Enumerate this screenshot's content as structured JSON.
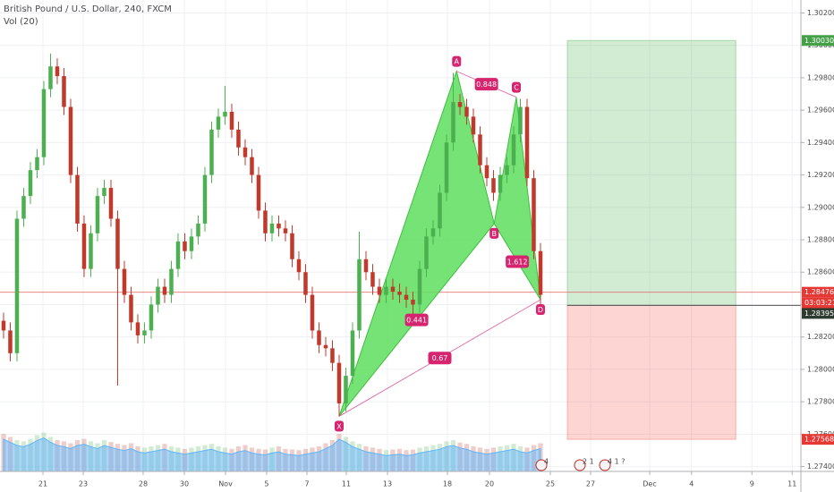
{
  "chart_data": {
    "type": "candlestick",
    "title": "British Pound / U.S. Dollar, 240, FXCM",
    "subtitle": "Vol (20)",
    "xlim": [
      -0.53,
      118.8
    ],
    "ylim": [
      1.2737,
      1.3028
    ],
    "yticks": [
      {
        "value": 1.274,
        "label": "1.27400"
      },
      {
        "value": 1.276,
        "label": "1.27600"
      },
      {
        "value": 1.278,
        "label": "1.27800"
      },
      {
        "value": 1.28,
        "label": "1.28000"
      },
      {
        "value": 1.282,
        "label": "1.28200"
      },
      {
        "value": 1.284,
        "label": "1.28400"
      },
      {
        "value": 1.286,
        "label": "1.28600"
      },
      {
        "value": 1.288,
        "label": "1.28800"
      },
      {
        "value": 1.29,
        "label": "1.29000"
      },
      {
        "value": 1.292,
        "label": "1.29200"
      },
      {
        "value": 1.294,
        "label": "1.29400"
      },
      {
        "value": 1.296,
        "label": "1.29600"
      },
      {
        "value": 1.298,
        "label": "1.29800"
      },
      {
        "value": 1.3,
        "label": "1.30000"
      },
      {
        "value": 1.302,
        "label": "1.30200"
      }
    ],
    "xticks": [
      {
        "value": 5.87,
        "label": "21"
      },
      {
        "value": 11.87,
        "label": "23"
      },
      {
        "value": 20.8,
        "label": "28"
      },
      {
        "value": 26.93,
        "label": "30"
      },
      {
        "value": 33.07,
        "label": "Nov"
      },
      {
        "value": 39.2,
        "label": "5"
      },
      {
        "value": 45.2,
        "label": "7"
      },
      {
        "value": 51.07,
        "label": "11"
      },
      {
        "value": 57.2,
        "label": "13"
      },
      {
        "value": 66.13,
        "label": "18"
      },
      {
        "value": 72.4,
        "label": "20"
      },
      {
        "value": 81.47,
        "label": "25"
      },
      {
        "value": 87.47,
        "label": "27"
      },
      {
        "value": 96.27,
        "label": "Dec"
      },
      {
        "value": 102.5,
        "label": "4"
      },
      {
        "value": 111.5,
        "label": "9"
      },
      {
        "value": 117.5,
        "label": "11"
      }
    ],
    "grid": true,
    "up_color": "#4caf50",
    "down_color": "#c0392b",
    "open": [
      1.283,
      1.2824,
      1.281,
      1.2893,
      1.2907,
      1.2923,
      1.2931,
      1.2973,
      1.2987,
      1.2981,
      1.2962,
      1.292,
      1.289,
      1.2862,
      1.2884,
      1.2907,
      1.2912,
      1.2893,
      1.2862,
      1.2846,
      1.2829,
      1.2821,
      1.2824,
      1.284,
      1.2851,
      1.2846,
      1.2862,
      1.2879,
      1.2873,
      1.2882,
      1.289,
      1.292,
      1.2948,
      1.2956,
      1.2959,
      1.2948,
      1.2937,
      1.2931,
      1.292,
      1.2898,
      1.2884,
      1.289,
      1.2887,
      1.2884,
      1.2868,
      1.286,
      1.2846,
      1.2824,
      1.2815,
      1.2813,
      1.2804,
      1.2779,
      1.2796,
      1.2824,
      1.2868,
      1.286,
      1.2851,
      1.2846,
      1.2851,
      1.2848,
      1.2846,
      1.2843,
      1.284,
      1.2862,
      1.2882,
      1.2887,
      1.2909,
      1.294,
      1.2965,
      1.2962,
      1.2956,
      1.2945,
      1.2926,
      1.2918,
      1.2909,
      1.292,
      1.2926,
      1.2945,
      1.2962,
      1.2918,
      1.2873
    ],
    "high": [
      1.2835,
      1.2829,
      1.2898,
      1.2912,
      1.2928,
      1.2936,
      1.2978,
      1.2995,
      1.2992,
      1.2986,
      1.2967,
      1.2925,
      1.2895,
      1.2889,
      1.2912,
      1.2917,
      1.2917,
      1.2898,
      1.2867,
      1.2851,
      1.2834,
      1.2829,
      1.2845,
      1.2856,
      1.2856,
      1.2867,
      1.2884,
      1.2884,
      1.2887,
      1.2895,
      1.2925,
      1.2953,
      1.2961,
      1.2975,
      1.2964,
      1.2953,
      1.2942,
      1.2936,
      1.2925,
      1.2903,
      1.2895,
      1.2895,
      1.2892,
      1.2889,
      1.2873,
      1.2865,
      1.2851,
      1.2829,
      1.282,
      1.2818,
      1.2809,
      1.2801,
      1.2829,
      1.2885,
      1.2873,
      1.2865,
      1.2856,
      1.2856,
      1.2856,
      1.2853,
      1.2851,
      1.2848,
      1.2867,
      1.2887,
      1.2892,
      1.2914,
      1.2945,
      1.2983,
      1.297,
      1.2967,
      1.2961,
      1.295,
      1.2931,
      1.2923,
      1.2925,
      1.2931,
      1.295,
      1.2967,
      1.2967,
      1.2923,
      1.2878
    ],
    "low": [
      1.2819,
      1.2805,
      1.2805,
      1.2888,
      1.2902,
      1.2918,
      1.2926,
      1.2968,
      1.2976,
      1.2957,
      1.2915,
      1.2885,
      1.2857,
      1.2857,
      1.2879,
      1.2902,
      1.2888,
      1.279,
      1.2841,
      1.2824,
      1.2816,
      1.2816,
      1.2819,
      1.2835,
      1.2841,
      1.2841,
      1.2857,
      1.2868,
      1.2868,
      1.2877,
      1.2885,
      1.2915,
      1.2943,
      1.2951,
      1.2943,
      1.2932,
      1.2926,
      1.2915,
      1.2893,
      1.2879,
      1.2879,
      1.2882,
      1.2879,
      1.2863,
      1.2855,
      1.2841,
      1.2819,
      1.281,
      1.2808,
      1.2799,
      1.2771,
      1.2774,
      1.2791,
      1.2819,
      1.2855,
      1.2846,
      1.2841,
      1.2841,
      1.2843,
      1.2841,
      1.2838,
      1.2833,
      1.2835,
      1.2857,
      1.2877,
      1.2882,
      1.2904,
      1.2935,
      1.2957,
      1.2951,
      1.294,
      1.2921,
      1.2913,
      1.2904,
      1.2904,
      1.2915,
      1.2921,
      1.294,
      1.2913,
      1.2868,
      1.284
    ],
    "close": [
      1.2824,
      1.281,
      1.2893,
      1.2907,
      1.2923,
      1.2931,
      1.2973,
      1.2987,
      1.2981,
      1.2962,
      1.292,
      1.289,
      1.2862,
      1.2884,
      1.2907,
      1.2912,
      1.2893,
      1.2862,
      1.2846,
      1.2829,
      1.2821,
      1.2824,
      1.284,
      1.2851,
      1.2846,
      1.2862,
      1.2879,
      1.2873,
      1.2882,
      1.289,
      1.292,
      1.2948,
      1.2956,
      1.2959,
      1.2948,
      1.2937,
      1.2931,
      1.292,
      1.2898,
      1.2884,
      1.289,
      1.2887,
      1.2884,
      1.2868,
      1.286,
      1.2846,
      1.2824,
      1.2815,
      1.2813,
      1.2804,
      1.2779,
      1.2796,
      1.2824,
      1.2868,
      1.286,
      1.2851,
      1.2846,
      1.2851,
      1.2848,
      1.2846,
      1.2843,
      1.284,
      1.2862,
      1.2882,
      1.2887,
      1.2909,
      1.294,
      1.2965,
      1.2962,
      1.2956,
      1.2945,
      1.2926,
      1.2918,
      1.2909,
      1.292,
      1.2926,
      1.2945,
      1.2962,
      1.2918,
      1.2873,
      1.2846
    ],
    "volume": [
      60,
      55,
      50,
      48,
      52,
      58,
      62,
      55,
      50,
      48,
      45,
      50,
      52,
      48,
      45,
      50,
      47,
      44,
      42,
      45,
      40,
      38,
      40,
      42,
      44,
      40,
      38,
      36,
      38,
      40,
      42,
      44,
      40,
      38,
      36,
      40,
      42,
      38,
      36,
      35,
      38,
      40,
      36,
      35,
      34,
      36,
      38,
      40,
      45,
      50,
      60,
      55,
      48,
      44,
      40,
      38,
      36,
      34,
      35,
      36,
      34,
      35,
      38,
      40,
      42,
      44,
      48,
      50,
      46,
      44,
      40,
      38,
      36,
      38,
      40,
      42,
      44,
      40,
      38,
      42,
      45
    ],
    "pattern": {
      "color": "#66e066",
      "points": [
        {
          "label": "X",
          "x": 50,
          "y": 1.2771
        },
        {
          "label": "A",
          "x": 67.5,
          "y": 1.2984
        },
        {
          "label": "B",
          "x": 73.1,
          "y": 1.289
        },
        {
          "label": "C",
          "x": 76.4,
          "y": 1.2968
        },
        {
          "label": "D",
          "x": 80,
          "y": 1.2843
        }
      ],
      "ratios": [
        "0.441",
        "0.848",
        "1.612",
        "0.67"
      ]
    },
    "position": {
      "x_start": 84,
      "x_end": 109.1,
      "target": 1.3003,
      "entry": 1.28395,
      "stop": 1.27568,
      "value_labels": {
        "target": "1.30030",
        "entry": "1.28395",
        "stop": "1.27568"
      }
    },
    "current_price": {
      "value": 1.28476,
      "label": "1.28476",
      "countdown": "03:03:21"
    },
    "events": [
      "4",
      "2 1",
      "4 1 ?"
    ]
  }
}
